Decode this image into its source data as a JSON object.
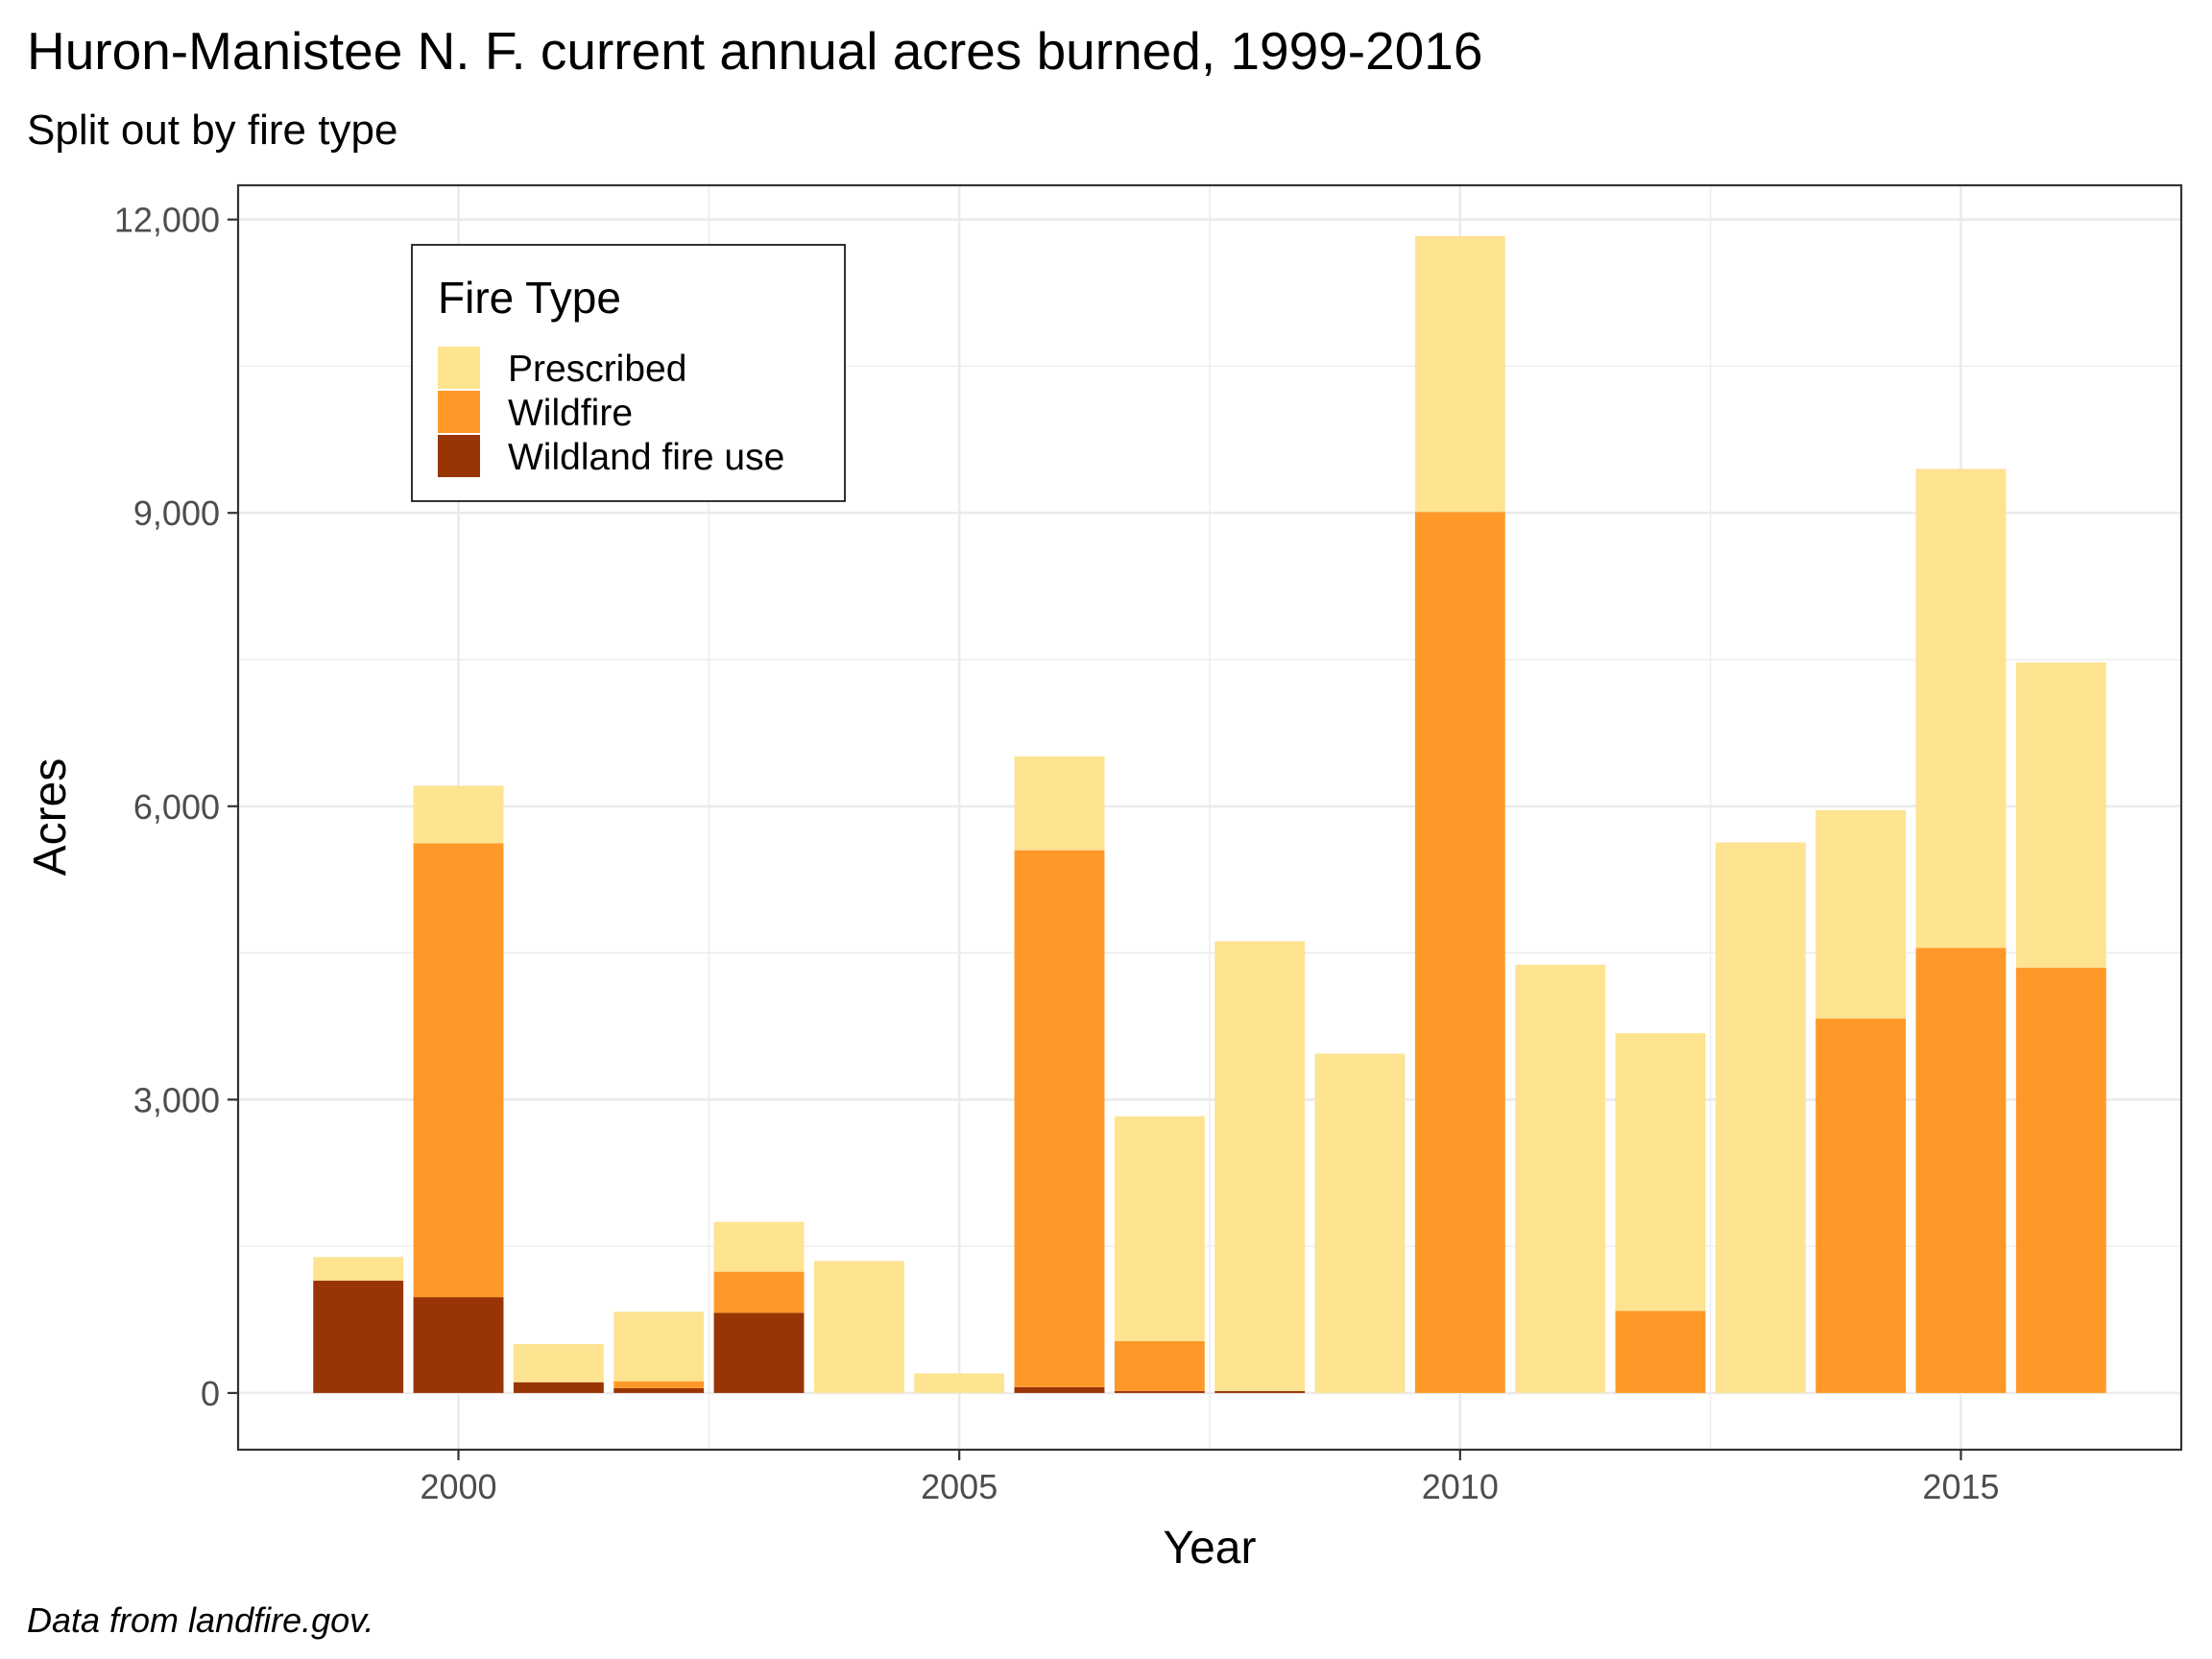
{
  "title": "Huron-Manistee N. F. current annual acres burned, 1999-2016",
  "subtitle": "Split out by fire type",
  "caption": "Data from landfire.gov.",
  "colors": {
    "Prescribed": "#fee391",
    "Wildfire": "#fe9929",
    "Wildland fire use": "#993404"
  },
  "chart_data": {
    "type": "bar",
    "stacked": true,
    "title": "Huron-Manistee N. F. current annual acres burned, 1999-2016",
    "subtitle": "Split out by fire type",
    "xlabel": "Year",
    "ylabel": "Acres",
    "x": [
      1999,
      2000,
      2001,
      2002,
      2003,
      2004,
      2005,
      2006,
      2007,
      2008,
      2009,
      2010,
      2011,
      2012,
      2013,
      2014,
      2015,
      2016
    ],
    "xlim": [
      1997.8,
      2017.2
    ],
    "ylim": [
      -580,
      12350
    ],
    "x_ticks": [
      2000,
      2005,
      2010,
      2015
    ],
    "x_tick_labels": [
      "2000",
      "2005",
      "2010",
      "2015"
    ],
    "y_ticks": [
      0,
      3000,
      6000,
      9000,
      12000
    ],
    "y_tick_labels": [
      "0",
      "3,000",
      "6,000",
      "9,000",
      "12,000"
    ],
    "grid": true,
    "legend": {
      "title": "Fire Type",
      "position": "top-left"
    },
    "series": [
      {
        "name": "Wildland fire use",
        "values": [
          1150,
          980,
          110,
          50,
          820,
          0,
          0,
          60,
          20,
          20,
          0,
          0,
          0,
          0,
          0,
          0,
          0,
          0
        ]
      },
      {
        "name": "Wildfire",
        "values": [
          0,
          4640,
          0,
          70,
          420,
          0,
          0,
          5490,
          510,
          0,
          0,
          9010,
          0,
          840,
          0,
          3830,
          4550,
          4350
        ]
      },
      {
        "name": "Prescribed",
        "values": [
          240,
          590,
          390,
          710,
          510,
          1350,
          200,
          960,
          2300,
          4600,
          3470,
          2820,
          4380,
          2840,
          5630,
          2130,
          4900,
          3120
        ]
      }
    ]
  }
}
